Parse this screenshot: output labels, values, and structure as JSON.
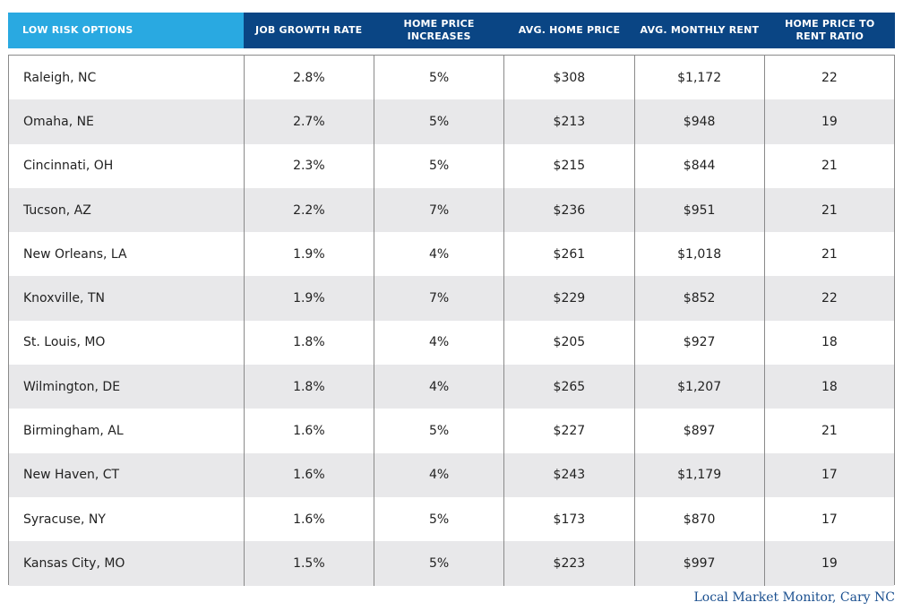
{
  "headers": [
    "LOW RISK OPTIONS",
    "JOB GROWTH RATE",
    "HOME PRICE INCREASES",
    "AVG. HOME PRICE",
    "AVG. MONTHLY RENT",
    "HOME PRICE TO RENT RATIO"
  ],
  "rows": [
    [
      "Raleigh, NC",
      "2.8%",
      "5%",
      "$308",
      "$1,172",
      "22"
    ],
    [
      "Omaha, NE",
      "2.7%",
      "5%",
      "$213",
      "$948",
      "19"
    ],
    [
      "Cincinnati, OH",
      "2.3%",
      "5%",
      "$215",
      "$844",
      "21"
    ],
    [
      "Tucson, AZ",
      "2.2%",
      "7%",
      "$236",
      "$951",
      "21"
    ],
    [
      "New Orleans, LA",
      "1.9%",
      "4%",
      "$261",
      "$1,018",
      "21"
    ],
    [
      "Knoxville, TN",
      "1.9%",
      "7%",
      "$229",
      "$852",
      "22"
    ],
    [
      "St. Louis, MO",
      "1.8%",
      "4%",
      "$205",
      "$927",
      "18"
    ],
    [
      "Wilmington, DE",
      "1.8%",
      "4%",
      "$265",
      "$1,207",
      "18"
    ],
    [
      "Birmingham, AL",
      "1.6%",
      "5%",
      "$227",
      "$897",
      "21"
    ],
    [
      "New Haven, CT",
      "1.6%",
      "4%",
      "$243",
      "$1,179",
      "17"
    ],
    [
      "Syracuse, NY",
      "1.6%",
      "5%",
      "$173",
      "$870",
      "17"
    ],
    [
      "Kansas City, MO",
      "1.5%",
      "5%",
      "$223",
      "$997",
      "19"
    ]
  ],
  "source": "Local Market Monitor, Cary NC",
  "colors": {
    "header_first": "#29a9e1",
    "header": "#0a4584",
    "row_shade": "#e8e8ea",
    "source_text": "#1a4f8f"
  }
}
